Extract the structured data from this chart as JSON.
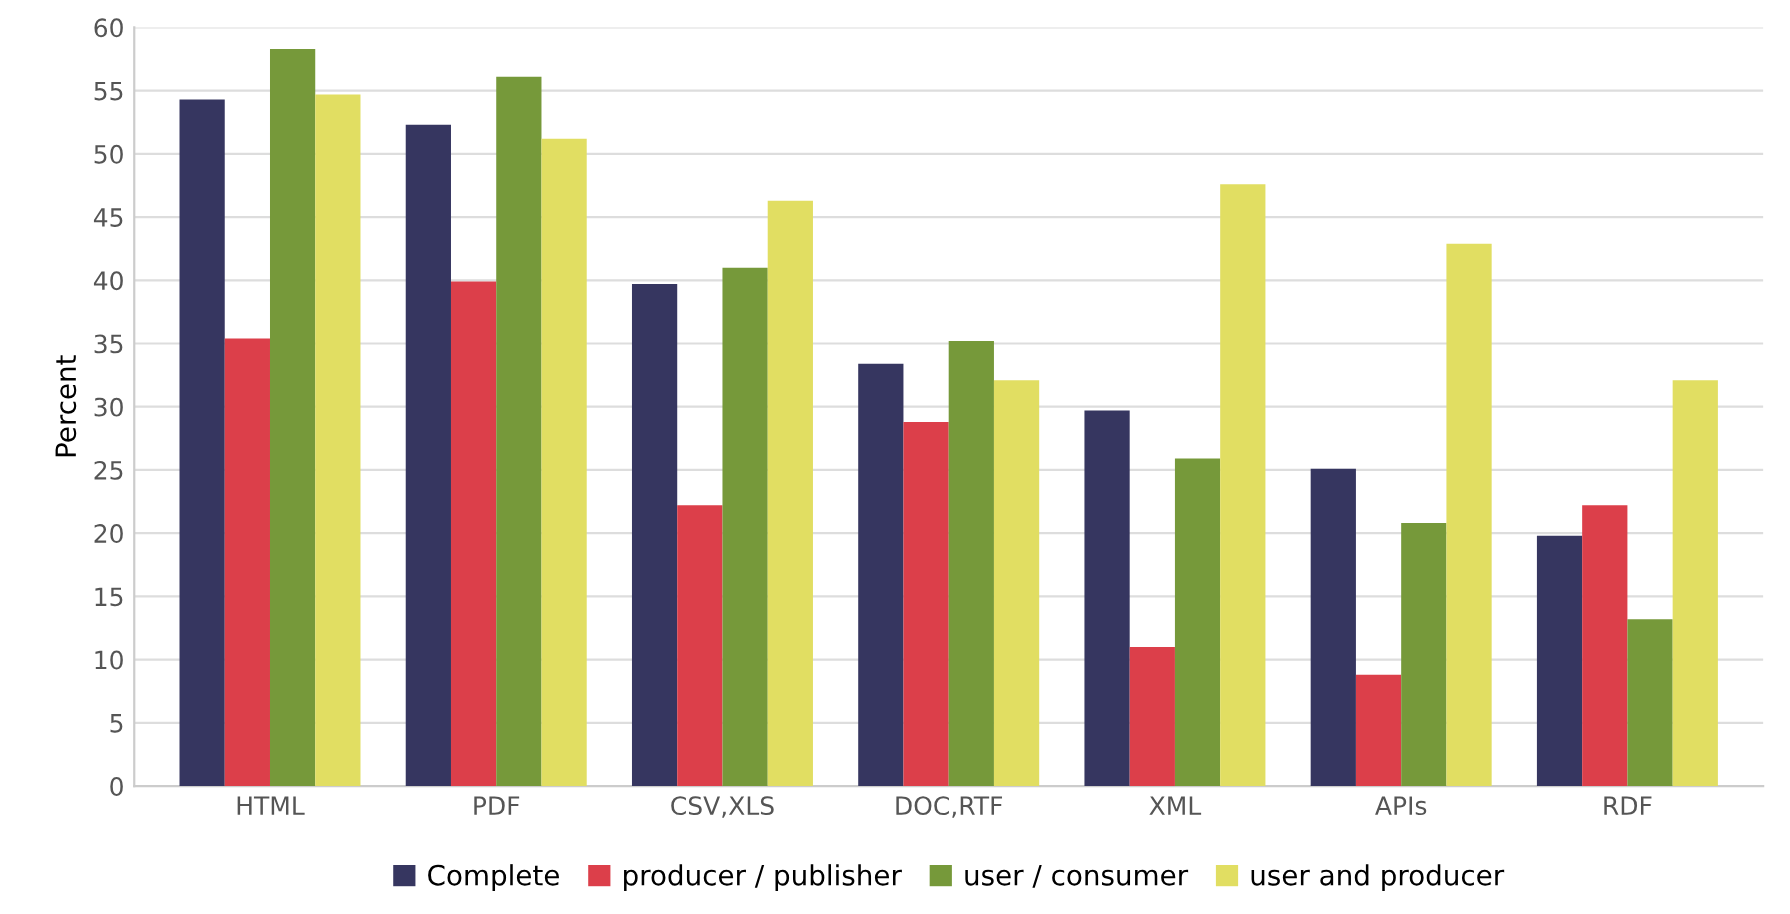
{
  "chart_data": {
    "type": "bar",
    "ylabel": "Percent",
    "categories": [
      "HTML",
      "PDF",
      "CSV,XLS",
      "DOC,RTF",
      "XML",
      "APIs",
      "RDF"
    ],
    "series": [
      {
        "name": "Complete",
        "color": "#363660",
        "values": [
          54.3,
          52.3,
          39.7,
          33.4,
          29.7,
          25.1,
          19.8
        ]
      },
      {
        "name": "producer / publisher",
        "color": "#dc3f4a",
        "values": [
          35.4,
          39.9,
          22.2,
          28.8,
          11.0,
          8.8,
          22.2
        ]
      },
      {
        "name": "user / consumer",
        "color": "#76993a",
        "values": [
          58.3,
          56.1,
          41.0,
          35.2,
          25.9,
          20.8,
          13.2
        ]
      },
      {
        "name": "user and producer",
        "color": "#e1de62",
        "values": [
          54.7,
          51.2,
          46.3,
          32.1,
          47.6,
          42.9,
          32.1
        ]
      }
    ],
    "ylim": [
      0,
      60
    ],
    "yticks": [
      0,
      5,
      10,
      15,
      20,
      25,
      30,
      35,
      40,
      45,
      50,
      55,
      60
    ],
    "grid": "y",
    "legend": "bottom"
  }
}
